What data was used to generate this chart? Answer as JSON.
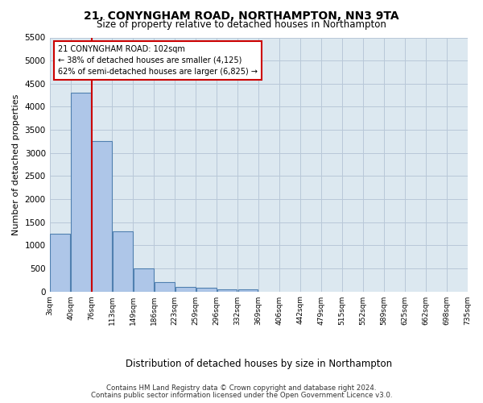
{
  "title": "21, CONYNGHAM ROAD, NORTHAMPTON, NN3 9TA",
  "subtitle": "Size of property relative to detached houses in Northampton",
  "xlabel": "Distribution of detached houses by size in Northampton",
  "ylabel": "Number of detached properties",
  "footer_line1": "Contains HM Land Registry data © Crown copyright and database right 2024.",
  "footer_line2": "Contains public sector information licensed under the Open Government Licence v3.0.",
  "annotation_line1": "21 CONYNGHAM ROAD: 102sqm",
  "annotation_line2": "← 38% of detached houses are smaller (4,125)",
  "annotation_line3": "62% of semi-detached houses are larger (6,825) →",
  "bar_heights": [
    1250,
    4300,
    3250,
    1300,
    500,
    200,
    100,
    75,
    50,
    50,
    0,
    0,
    0,
    0,
    0,
    0,
    0,
    0,
    0,
    0
  ],
  "bar_color": "#aec6e8",
  "bar_edge_color": "#5080b0",
  "vline_color": "#cc0000",
  "vline_bin": 1,
  "ylim": [
    0,
    5500
  ],
  "yticks": [
    0,
    500,
    1000,
    1500,
    2000,
    2500,
    3000,
    3500,
    4000,
    4500,
    5000,
    5500
  ],
  "xtick_labels": [
    "3sqm",
    "40sqm",
    "76sqm",
    "113sqm",
    "149sqm",
    "186sqm",
    "223sqm",
    "259sqm",
    "296sqm",
    "332sqm",
    "369sqm",
    "406sqm",
    "442sqm",
    "479sqm",
    "515sqm",
    "552sqm",
    "589sqm",
    "625sqm",
    "662sqm",
    "698sqm",
    "735sqm"
  ],
  "n_bins": 20,
  "grid_color": "#b8c8d8",
  "bg_color": "#ffffff",
  "plot_bg_color": "#dce8f0"
}
